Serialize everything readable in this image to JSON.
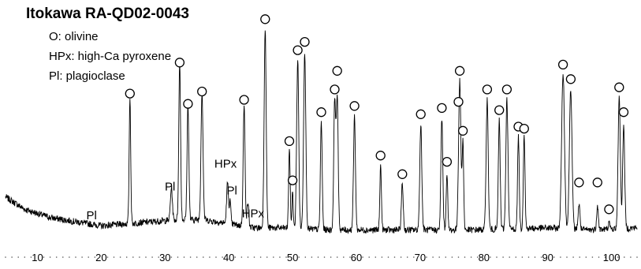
{
  "chart_data": {
    "type": "line",
    "title": "Itokawa RA-QD02-0043",
    "legend": [
      {
        "symbol": "O",
        "name": "olivine",
        "text": "O: olivine"
      },
      {
        "symbol": "HPx",
        "name": "high-Ca pyroxene",
        "text": "HPx: high-Ca pyroxene"
      },
      {
        "symbol": "Pl",
        "name": "plagioclase",
        "text": "Pl: plagioclase"
      }
    ],
    "legend_placement": "top-left",
    "xlabel": "",
    "ylabel": "",
    "xlim": [
      5,
      104
    ],
    "ylim": [
      0,
      100
    ],
    "x_ticks": [
      10,
      20,
      30,
      40,
      50,
      60,
      70,
      80,
      90,
      100
    ],
    "x_minor_step": 1,
    "grid": false,
    "baseline": [
      [
        5,
        20
      ],
      [
        8,
        14
      ],
      [
        12,
        10
      ],
      [
        16,
        8
      ],
      [
        20,
        6
      ],
      [
        24,
        7
      ],
      [
        28,
        8
      ],
      [
        32,
        9
      ],
      [
        36,
        9
      ],
      [
        40,
        7
      ],
      [
        44,
        5
      ],
      [
        48,
        5
      ],
      [
        56,
        4
      ],
      [
        66,
        4
      ],
      [
        78,
        4
      ],
      [
        90,
        5
      ],
      [
        96,
        4
      ],
      [
        104,
        5
      ]
    ],
    "peaks": [
      {
        "x": 24.5,
        "y": 61,
        "w": 0.12,
        "phase": "O"
      },
      {
        "x": 31.0,
        "y": 16,
        "w": 0.15,
        "phase": "Pl"
      },
      {
        "x": 32.3,
        "y": 76,
        "w": 0.14,
        "phase": "O"
      },
      {
        "x": 33.6,
        "y": 56,
        "w": 0.14,
        "phase": "O"
      },
      {
        "x": 35.8,
        "y": 62,
        "w": 0.16,
        "phase": "O"
      },
      {
        "x": 39.8,
        "y": 20,
        "w": 0.14,
        "phase": "HPx"
      },
      {
        "x": 40.2,
        "y": 11,
        "w": 0.12,
        "phase": "Pl"
      },
      {
        "x": 42.4,
        "y": 58,
        "w": 0.15,
        "phase": "O"
      },
      {
        "x": 43.0,
        "y": 12,
        "w": 0.13,
        "phase": "HPx"
      },
      {
        "x": 45.7,
        "y": 97,
        "w": 0.16,
        "phase": "O"
      },
      {
        "x": 49.5,
        "y": 38,
        "w": 0.12,
        "phase": "O"
      },
      {
        "x": 50.0,
        "y": 18,
        "w": 0.1,
        "phase": "O"
      },
      {
        "x": 50.8,
        "y": 82,
        "w": 0.16,
        "phase": "O"
      },
      {
        "x": 51.9,
        "y": 86,
        "w": 0.17,
        "phase": "O"
      },
      {
        "x": 54.5,
        "y": 52,
        "w": 0.14,
        "phase": "O"
      },
      {
        "x": 56.6,
        "y": 63,
        "w": 0.15,
        "phase": "O"
      },
      {
        "x": 57.0,
        "y": 64,
        "w": 0.15,
        "phase": "O"
      },
      {
        "x": 59.7,
        "y": 55,
        "w": 0.15,
        "phase": "O"
      },
      {
        "x": 63.8,
        "y": 31,
        "w": 0.12,
        "phase": "O"
      },
      {
        "x": 67.2,
        "y": 22,
        "w": 0.14,
        "phase": "O"
      },
      {
        "x": 70.1,
        "y": 51,
        "w": 0.16,
        "phase": "O"
      },
      {
        "x": 73.4,
        "y": 54,
        "w": 0.15,
        "phase": "O"
      },
      {
        "x": 74.2,
        "y": 28,
        "w": 0.12,
        "phase": "O"
      },
      {
        "x": 76.2,
        "y": 72,
        "w": 0.18,
        "phase": "O"
      },
      {
        "x": 76.7,
        "y": 43,
        "w": 0.12,
        "phase": "O"
      },
      {
        "x": 80.5,
        "y": 63,
        "w": 0.16,
        "phase": "O"
      },
      {
        "x": 82.4,
        "y": 53,
        "w": 0.14,
        "phase": "O"
      },
      {
        "x": 83.6,
        "y": 63,
        "w": 0.16,
        "phase": "O"
      },
      {
        "x": 85.4,
        "y": 45,
        "w": 0.13,
        "phase": "O"
      },
      {
        "x": 86.3,
        "y": 46,
        "w": 0.13,
        "phase": "O"
      },
      {
        "x": 92.4,
        "y": 75,
        "w": 0.22,
        "phase": "O"
      },
      {
        "x": 93.6,
        "y": 68,
        "w": 0.2,
        "phase": "O"
      },
      {
        "x": 94.9,
        "y": 12,
        "w": 0.15,
        "phase": "O"
      },
      {
        "x": 97.8,
        "y": 12,
        "w": 0.13,
        "phase": "O"
      },
      {
        "x": 99.6,
        "y": 3,
        "w": 0.12,
        "phase": "O"
      },
      {
        "x": 101.2,
        "y": 64,
        "w": 0.17,
        "phase": "O"
      },
      {
        "x": 101.9,
        "y": 50,
        "w": 0.16,
        "phase": "O"
      }
    ],
    "annotations": [
      {
        "text": "O",
        "x": 24.5,
        "y": 70
      },
      {
        "text": "O",
        "x": 32.3,
        "y": 85
      },
      {
        "text": "O",
        "x": 33.6,
        "y": 65
      },
      {
        "text": "O",
        "x": 35.8,
        "y": 71
      },
      {
        "text": "O",
        "x": 42.4,
        "y": 67
      },
      {
        "text": "O",
        "x": 45.7,
        "y": 106
      },
      {
        "text": "O",
        "x": 49.5,
        "y": 47
      },
      {
        "text": "O",
        "x": 50.0,
        "y": 28
      },
      {
        "text": "O",
        "x": 50.8,
        "y": 91
      },
      {
        "text": "O",
        "x": 51.9,
        "y": 95
      },
      {
        "text": "O",
        "x": 54.5,
        "y": 61
      },
      {
        "text": "O",
        "x": 56.6,
        "y": 72
      },
      {
        "text": "O",
        "x": 57.0,
        "y": 81
      },
      {
        "text": "O",
        "x": 59.7,
        "y": 64
      },
      {
        "text": "O",
        "x": 63.8,
        "y": 40
      },
      {
        "text": "O",
        "x": 67.2,
        "y": 31
      },
      {
        "text": "O",
        "x": 70.1,
        "y": 60
      },
      {
        "text": "O",
        "x": 73.4,
        "y": 63
      },
      {
        "text": "O",
        "x": 74.2,
        "y": 37
      },
      {
        "text": "O",
        "x": 76.2,
        "y": 81
      },
      {
        "text": "O",
        "x": 76.0,
        "y": 66
      },
      {
        "text": "O",
        "x": 76.7,
        "y": 52
      },
      {
        "text": "O",
        "x": 80.5,
        "y": 72
      },
      {
        "text": "O",
        "x": 82.4,
        "y": 62
      },
      {
        "text": "O",
        "x": 83.6,
        "y": 72
      },
      {
        "text": "O",
        "x": 85.4,
        "y": 54
      },
      {
        "text": "O",
        "x": 86.3,
        "y": 53
      },
      {
        "text": "O",
        "x": 92.4,
        "y": 84
      },
      {
        "text": "O",
        "x": 93.6,
        "y": 77
      },
      {
        "text": "O",
        "x": 94.9,
        "y": 27
      },
      {
        "text": "O",
        "x": 97.8,
        "y": 27
      },
      {
        "text": "O",
        "x": 99.6,
        "y": 14
      },
      {
        "text": "O",
        "x": 101.2,
        "y": 73
      },
      {
        "text": "O",
        "x": 101.9,
        "y": 61
      },
      {
        "text": "Pl",
        "x": 18.5,
        "y": 11
      },
      {
        "text": "Pl",
        "x": 30.8,
        "y": 25
      },
      {
        "text": "HPx",
        "x": 39.5,
        "y": 36
      },
      {
        "text": "Pl",
        "x": 40.5,
        "y": 23
      },
      {
        "text": "HPx",
        "x": 43.8,
        "y": 12
      }
    ]
  }
}
